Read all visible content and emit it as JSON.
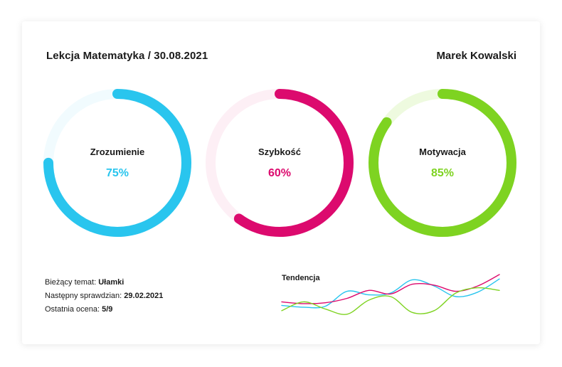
{
  "header": {
    "lesson_title": "Lekcja Matematyka / 30.08.2021",
    "student_name": "Marek Kowalski"
  },
  "metrics": [
    {
      "label": "Zrozumienie",
      "value": "75%",
      "percent": 75,
      "color": "#29C5EE",
      "track": "#F1FBFE"
    },
    {
      "label": "Szybkość",
      "value": "60%",
      "percent": 60,
      "color": "#DC0A6E",
      "track": "#FDEFF5"
    },
    {
      "label": "Motywacja",
      "value": "85%",
      "percent": 85,
      "color": "#7ED321",
      "track": "#EEFADF"
    }
  ],
  "info": {
    "topic_label": "Bieżący temat:",
    "topic_value": "Ułamki",
    "next_test_label": "Następny sprawdzian:",
    "next_test_value": "29.02.2021",
    "last_grade_label": "Ostatnia ocena:",
    "last_grade_value": "5/9"
  },
  "trend": {
    "title": "Tendencja"
  },
  "chart_data": {
    "type": "line",
    "title": "Tendencja",
    "xlabel": "",
    "ylabel": "",
    "grid": false,
    "legend": "none",
    "x": [
      0,
      1,
      2,
      3,
      4,
      5,
      6,
      7,
      8,
      9,
      10
    ],
    "ylim": [
      0,
      10
    ],
    "series": [
      {
        "color": "#29C5EE",
        "values": [
          3.0,
          2.6,
          2.8,
          6.2,
          5.4,
          5.8,
          8.8,
          7.4,
          5.0,
          6.0,
          9.0
        ]
      },
      {
        "color": "#DC0A6E",
        "values": [
          3.8,
          3.4,
          3.6,
          4.6,
          6.4,
          5.6,
          7.8,
          7.6,
          6.2,
          7.4,
          10.0
        ]
      },
      {
        "color": "#7ED321",
        "values": [
          1.8,
          3.8,
          2.2,
          1.0,
          4.2,
          5.0,
          1.4,
          1.8,
          5.8,
          7.0,
          6.4
        ]
      }
    ]
  }
}
